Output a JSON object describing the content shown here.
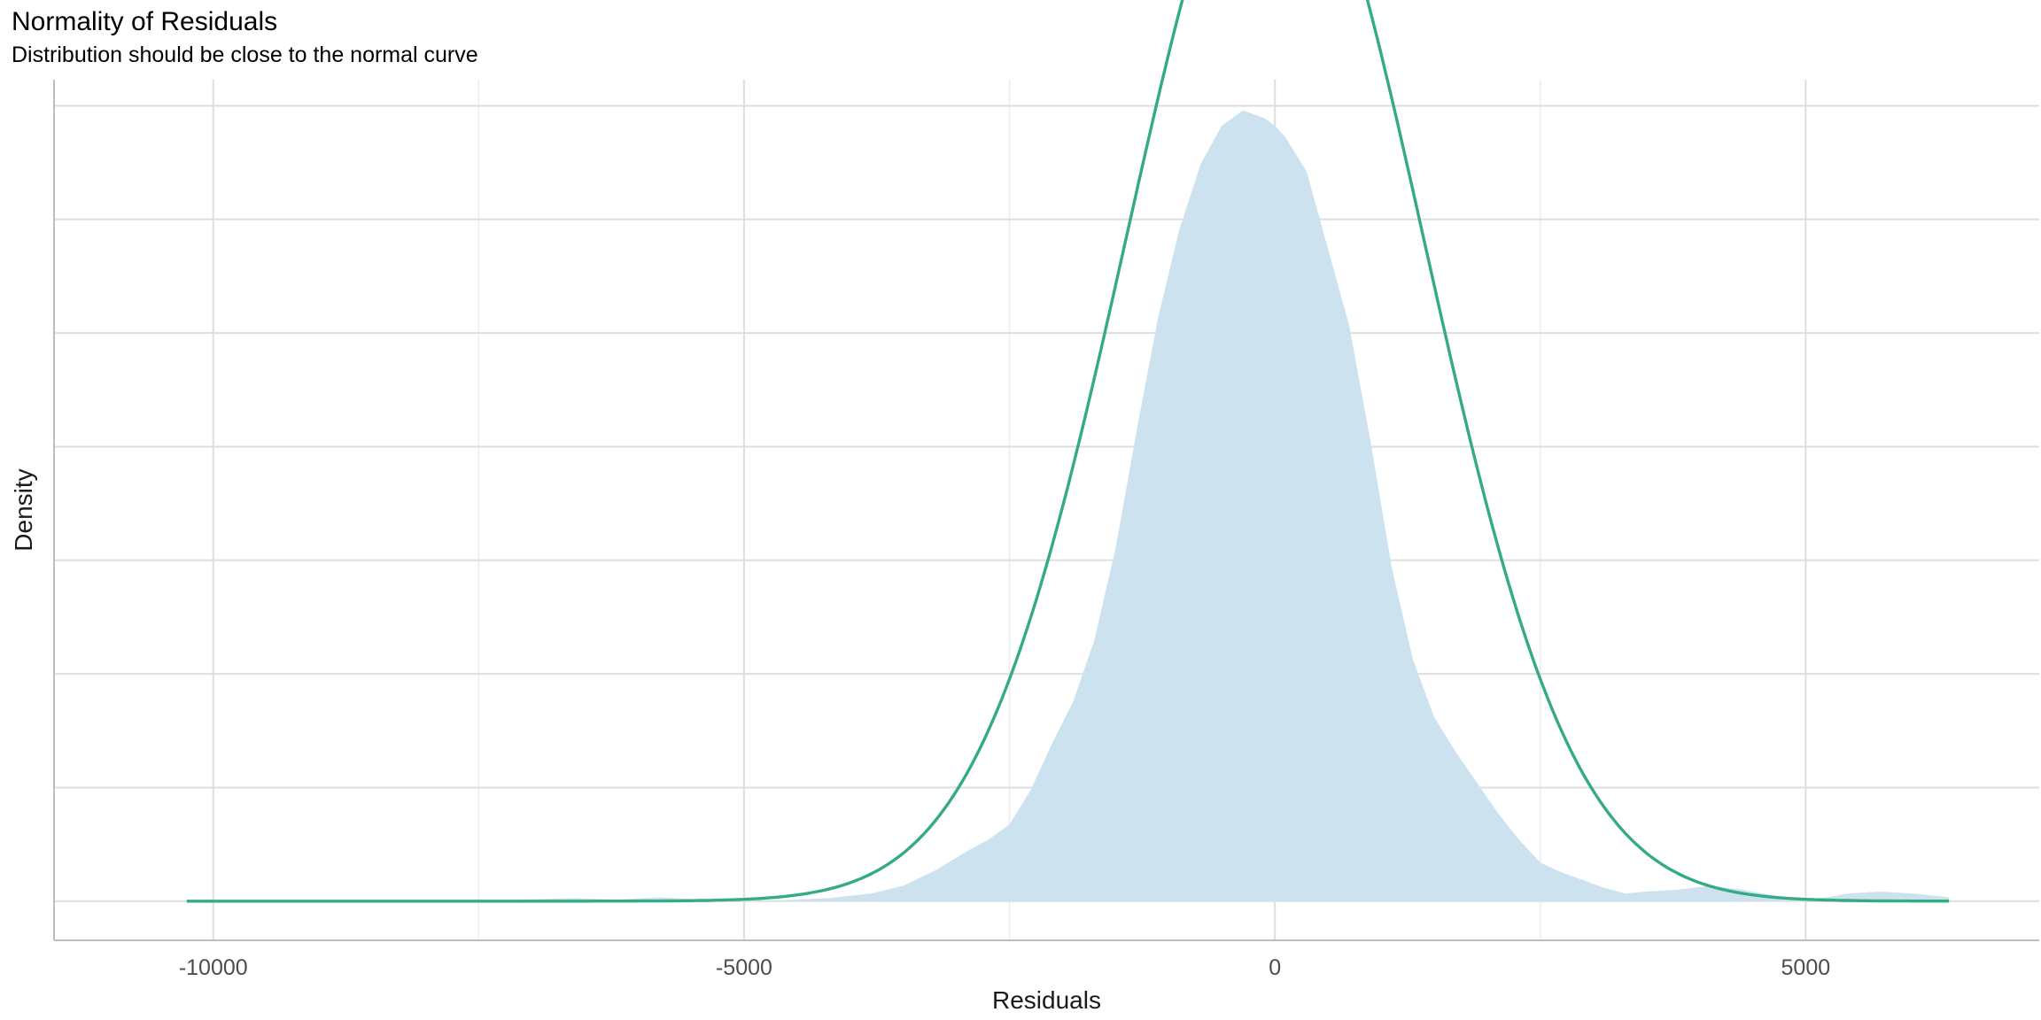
{
  "chart_data": {
    "type": "area",
    "title": "Normality of Residuals",
    "subtitle": "Distribution should be close to the normal curve",
    "xlabel": "Residuals",
    "ylabel": "Density",
    "xlim": [
      -11500,
      7200
    ],
    "ylim": [
      -1.02e-05,
      0.000214
    ],
    "x_ticks": [
      -10000,
      -5000,
      0,
      5000
    ],
    "x_tick_labels": [
      "-10000",
      "-5000",
      "0",
      "5000"
    ],
    "y_tick_labels_shown": false,
    "grid": true,
    "series": [
      {
        "kind": "density",
        "fill_color": "#cce3ef",
        "x": [
          -10250,
          -9000,
          -8000,
          -7200,
          -6600,
          -6200,
          -5800,
          -5400,
          -5000,
          -4600,
          -4200,
          -3800,
          -3500,
          -3200,
          -2900,
          -2700,
          -2500,
          -2300,
          -2100,
          -1900,
          -1700,
          -1500,
          -1300,
          -1100,
          -900,
          -700,
          -500,
          -300,
          -100,
          0,
          100,
          300,
          500,
          700,
          900,
          1100,
          1300,
          1500,
          1700,
          1900,
          2100,
          2300,
          2500,
          2700,
          2900,
          3100,
          3300,
          3500,
          3800,
          4100,
          4400,
          4600,
          4800,
          5000,
          5200,
          5400,
          5700,
          6000,
          6350
        ],
        "y": [
          0,
          0,
          1e-07,
          3e-07,
          8e-07,
          4e-07,
          1e-06,
          4e-07,
          2e-07,
          3e-07,
          8e-07,
          2e-06,
          4e-06,
          8e-06,
          1.3e-05,
          1.6e-05,
          2e-05,
          2.9e-05,
          4.1e-05,
          5.2e-05,
          6.8e-05,
          9.2e-05,
          0.000123,
          0.000152,
          0.000175,
          0.000192,
          0.000202,
          0.000206,
          0.000204,
          0.000202,
          0.000199,
          0.00019,
          0.00017,
          0.00015,
          0.00012,
          8.7e-05,
          6.3e-05,
          4.8e-05,
          3.9e-05,
          3.1e-05,
          2.3e-05,
          1.6e-05,
          1e-05,
          7.5e-06,
          5.5e-06,
          3.5e-06,
          2e-06,
          2.5e-06,
          3e-06,
          4e-06,
          3e-06,
          2e-06,
          1e-06,
          5e-07,
          1e-06,
          2e-06,
          2.5e-06,
          2e-06,
          1e-06
        ]
      },
      {
        "kind": "normal",
        "line_color": "#35ab84",
        "mean": 0,
        "sd": 1400,
        "x_range": [
          -10250,
          6350
        ]
      }
    ]
  }
}
